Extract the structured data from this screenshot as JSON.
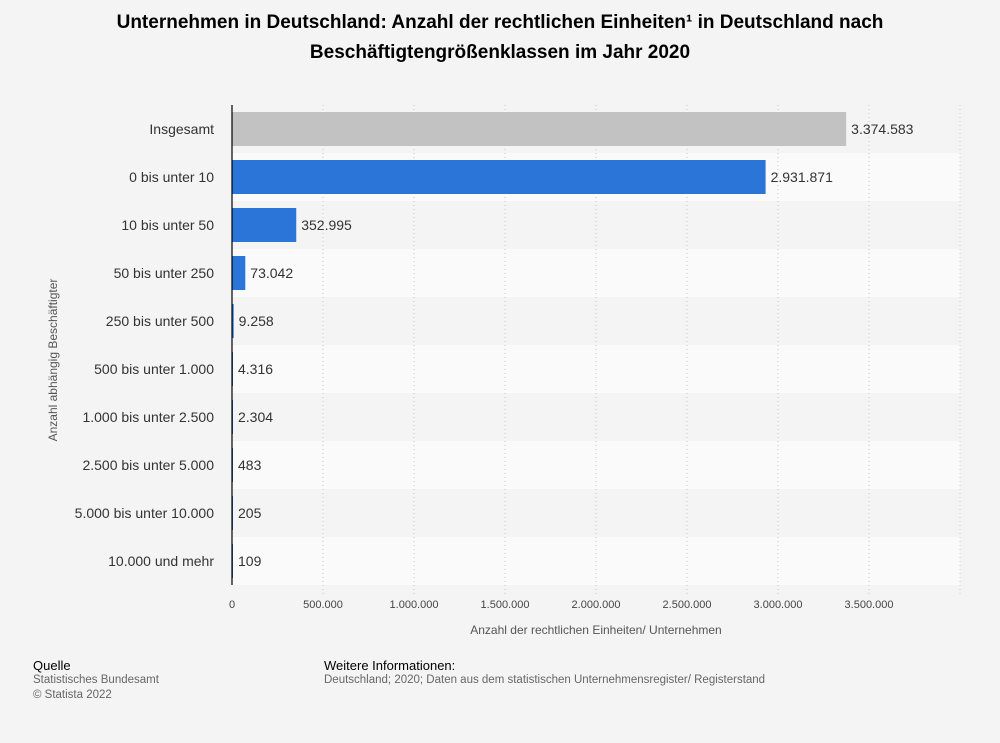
{
  "chart_data": {
    "type": "bar",
    "orientation": "horizontal",
    "title": "Unternehmen in Deutschland: Anzahl der rechtlichen Einheiten¹ in Deutschland nach Beschäftigtengrößenklassen im Jahr 2020",
    "xlabel": "Anzahl der rechtlichen Einheiten/ Unternehmen",
    "ylabel": "Anzahl abhängig Beschäftigter",
    "xlim": [
      0,
      4000000
    ],
    "xticks": [
      0,
      500000,
      1000000,
      1500000,
      2000000,
      2500000,
      3000000,
      3500000
    ],
    "xtick_labels": [
      "0",
      "500.000",
      "1.000.000",
      "1.500.000",
      "2.000.000",
      "2.500.000",
      "3.000.000",
      "3.500.000"
    ],
    "grid": true,
    "categories": [
      "Insgesamt",
      "0 bis unter 10",
      "10 bis unter 50",
      "50 bis unter 250",
      "250 bis unter 500",
      "500 bis unter 1.000",
      "1.000 bis unter 2.500",
      "2.500 bis unter 5.000",
      "5.000 bis unter 10.000",
      "10.000 und mehr"
    ],
    "values": [
      3374583,
      2931871,
      352995,
      73042,
      9258,
      4316,
      2304,
      483,
      205,
      109
    ],
    "value_labels": [
      "3.374.583",
      "2.931.871",
      "352.995",
      "73.042",
      "9.258",
      "4.316",
      "2.304",
      "483",
      "205",
      "109"
    ],
    "bar_colors": [
      "#c2c2c2",
      "#2b74d8",
      "#2b74d8",
      "#2b74d8",
      "#2b74d8",
      "#2b74d8",
      "#2b74d8",
      "#2b74d8",
      "#2b74d8",
      "#2b74d8"
    ]
  },
  "footer": {
    "source_heading": "Quelle",
    "source": "Statistisches Bundesamt",
    "copyright": "© Statista 2022",
    "info_heading": "Weitere Informationen:",
    "info": "Deutschland; 2020; Daten aus dem statistischen Unternehmensregister/ Registerstand"
  }
}
